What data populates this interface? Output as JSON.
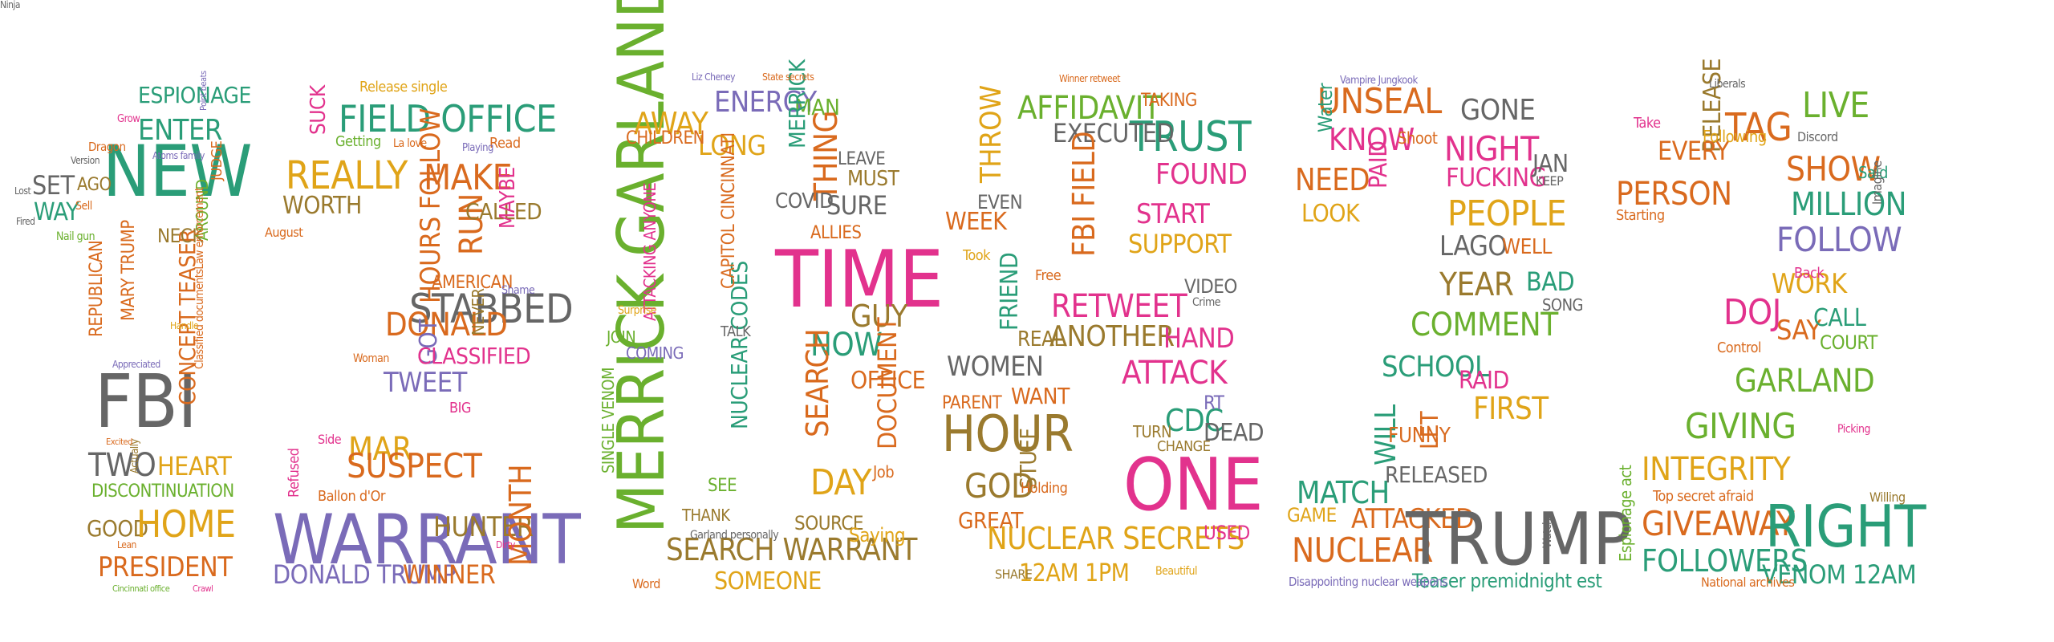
{
  "colors": {
    "teal": "#2a9d78",
    "orange": "#d96a1e",
    "yellow": "#e0a418",
    "pink": "#e2328d",
    "purple": "#7a6bb8",
    "green": "#6ab02e",
    "gray": "#666666",
    "brown": "#9a7a2e"
  },
  "digit_groups": [
    {
      "name": "digit-1-words",
      "words": [
        {
          "t": "NEW",
          "c": "teal"
        },
        {
          "t": "FBI",
          "c": "gray"
        },
        {
          "t": "ESPIONAGE",
          "c": "teal"
        },
        {
          "t": "ENTER",
          "c": "teal"
        },
        {
          "t": "SET",
          "c": "gray"
        },
        {
          "t": "WAY",
          "c": "teal"
        },
        {
          "t": "AGO",
          "c": "brown"
        },
        {
          "t": "REPUBLICAN",
          "c": "orange"
        },
        {
          "t": "MARY TRUMP",
          "c": "orange"
        },
        {
          "t": "CONCEPT TEASER",
          "c": "orange"
        },
        {
          "t": "TWO",
          "c": "gray"
        },
        {
          "t": "HEART",
          "c": "yellow"
        },
        {
          "t": "DISCONTINUATION",
          "c": "green"
        },
        {
          "t": "GOOD",
          "c": "brown"
        },
        {
          "t": "HOME",
          "c": "yellow"
        },
        {
          "t": "PRESIDENT",
          "c": "orange"
        },
        {
          "t": "JUDGE",
          "c": "orange"
        },
        {
          "t": "NECK",
          "c": "brown"
        },
        {
          "t": "AROUND",
          "c": "green"
        },
        {
          "t": "Dragon",
          "c": "orange"
        },
        {
          "t": "Grow",
          "c": "pink"
        },
        {
          "t": "Version",
          "c": "gray"
        },
        {
          "t": "Nail gun",
          "c": "green"
        },
        {
          "t": "Lost",
          "c": "gray"
        },
        {
          "t": "Sell",
          "c": "orange"
        },
        {
          "t": "Fired",
          "c": "gray"
        },
        {
          "t": "Atoms family",
          "c": "purple"
        },
        {
          "t": "Classified documentsLaw enforcement",
          "c": "orange"
        },
        {
          "t": "Handle",
          "c": "yellow"
        },
        {
          "t": "Appreciated",
          "c": "purple"
        },
        {
          "t": "Actually",
          "c": "brown"
        },
        {
          "t": "Excited",
          "c": "orange"
        },
        {
          "t": "Lean",
          "c": "orange"
        },
        {
          "t": "Cincinnati office",
          "c": "green"
        },
        {
          "t": "Crawl",
          "c": "pink"
        },
        {
          "t": "Point beats",
          "c": "purple"
        }
      ]
    },
    {
      "name": "digit-2-words",
      "words": [
        {
          "t": "FIELD OFFICE",
          "c": "teal"
        },
        {
          "t": "REALLY",
          "c": "yellow"
        },
        {
          "t": "SUCK",
          "c": "pink"
        },
        {
          "t": "MAKE",
          "c": "orange"
        },
        {
          "t": "WORTH",
          "c": "brown"
        },
        {
          "t": "HOURS FOLLOW",
          "c": "orange"
        },
        {
          "t": "RUN",
          "c": "orange"
        },
        {
          "t": "STABBED",
          "c": "gray"
        },
        {
          "t": "DONALD",
          "c": "orange"
        },
        {
          "t": "TWEET",
          "c": "purple"
        },
        {
          "t": "GOT",
          "c": "purple"
        },
        {
          "t": "MAR",
          "c": "yellow"
        },
        {
          "t": "SUSPECT",
          "c": "orange"
        },
        {
          "t": "WARRANT",
          "c": "purple"
        },
        {
          "t": "DONALD TRUMP",
          "c": "purple"
        },
        {
          "t": "WINNER",
          "c": "orange"
        },
        {
          "t": "HUNTER",
          "c": "brown"
        },
        {
          "t": "MONTH",
          "c": "orange"
        },
        {
          "t": "CLASSIFIED",
          "c": "pink"
        },
        {
          "t": "AMERICAN",
          "c": "orange"
        },
        {
          "t": "NEVER",
          "c": "brown"
        },
        {
          "t": "CALLED",
          "c": "brown"
        },
        {
          "t": "MAYBE",
          "c": "pink"
        },
        {
          "t": "Refused",
          "c": "pink"
        },
        {
          "t": "Side",
          "c": "pink"
        },
        {
          "t": "BIG",
          "c": "pink"
        },
        {
          "t": "Release single",
          "c": "yellow"
        },
        {
          "t": "Getting",
          "c": "green"
        },
        {
          "t": "Read",
          "c": "orange"
        },
        {
          "t": "La love",
          "c": "orange"
        },
        {
          "t": "Playing",
          "c": "purple"
        },
        {
          "t": "August",
          "c": "orange"
        },
        {
          "t": "Ballon d'Or",
          "c": "orange"
        },
        {
          "t": "Shame",
          "c": "purple"
        },
        {
          "t": "Woman",
          "c": "orange"
        },
        {
          "t": "Dirty",
          "c": "pink"
        }
      ]
    },
    {
      "name": "digit-0-words",
      "words": [
        {
          "t": "MERRICK GARLAND",
          "c": "green"
        },
        {
          "t": "TIME",
          "c": "pink"
        },
        {
          "t": "ENERGY",
          "c": "purple"
        },
        {
          "t": "AWAY",
          "c": "yellow"
        },
        {
          "t": "LONG",
          "c": "yellow"
        },
        {
          "t": "MAN",
          "c": "green"
        },
        {
          "t": "THING",
          "c": "orange"
        },
        {
          "t": "MERRICK",
          "c": "teal"
        },
        {
          "t": "COVID",
          "c": "gray"
        },
        {
          "t": "SURE",
          "c": "gray"
        },
        {
          "t": "GUY",
          "c": "brown"
        },
        {
          "t": "NOW",
          "c": "teal"
        },
        {
          "t": "OFFICE",
          "c": "orange"
        },
        {
          "t": "SEARCH",
          "c": "orange"
        },
        {
          "t": "DOCUMENT",
          "c": "orange"
        },
        {
          "t": "DAY",
          "c": "yellow"
        },
        {
          "t": "SEARCH WARRANT",
          "c": "brown"
        },
        {
          "t": "SOMEONE",
          "c": "yellow"
        },
        {
          "t": "SOURCE",
          "c": "brown"
        },
        {
          "t": "NUCLEAR CODES",
          "c": "teal"
        },
        {
          "t": "ATTACKING ANYONE",
          "c": "pink"
        },
        {
          "t": "SINGLE VENOM",
          "c": "green"
        },
        {
          "t": "CAPITOL CINCINNATI",
          "c": "orange"
        },
        {
          "t": "JOIN",
          "c": "green"
        },
        {
          "t": "COMING",
          "c": "purple"
        },
        {
          "t": "SEE",
          "c": "green"
        },
        {
          "t": "MUST",
          "c": "brown"
        },
        {
          "t": "LEAVE",
          "c": "gray"
        },
        {
          "t": "ALLIES",
          "c": "orange"
        },
        {
          "t": "CHILDREN",
          "c": "orange"
        },
        {
          "t": "TALK",
          "c": "gray"
        },
        {
          "t": "THANK",
          "c": "brown"
        },
        {
          "t": "Saying",
          "c": "yellow"
        },
        {
          "t": "Liz Cheney",
          "c": "purple"
        },
        {
          "t": "State secrets",
          "c": "orange"
        },
        {
          "t": "Garland personally",
          "c": "gray"
        },
        {
          "t": "Job",
          "c": "orange"
        },
        {
          "t": "Word",
          "c": "orange"
        },
        {
          "t": "Surprise",
          "c": "yellow"
        },
        {
          "t": "Ninja",
          "c": "gray"
        }
      ]
    },
    {
      "name": "digit-8-words",
      "words": [
        {
          "t": "AFFIDAVIT",
          "c": "green"
        },
        {
          "t": "THROW",
          "c": "yellow"
        },
        {
          "t": "TRUST",
          "c": "teal"
        },
        {
          "t": "EXECUTED",
          "c": "gray"
        },
        {
          "t": "FBI FIELD",
          "c": "orange"
        },
        {
          "t": "FOUND",
          "c": "pink"
        },
        {
          "t": "START",
          "c": "pink"
        },
        {
          "t": "WEEK",
          "c": "orange"
        },
        {
          "t": "EVEN",
          "c": "gray"
        },
        {
          "t": "SUPPORT",
          "c": "yellow"
        },
        {
          "t": "RETWEET",
          "c": "pink"
        },
        {
          "t": "ANOTHER",
          "c": "brown"
        },
        {
          "t": "FRIEND",
          "c": "teal"
        },
        {
          "t": "REAL",
          "c": "brown"
        },
        {
          "t": "HAND",
          "c": "pink"
        },
        {
          "t": "ATTACK",
          "c": "pink"
        },
        {
          "t": "WOMEN",
          "c": "gray"
        },
        {
          "t": "WANT",
          "c": "orange"
        },
        {
          "t": "PARENT",
          "c": "orange"
        },
        {
          "t": "HOUR",
          "c": "brown"
        },
        {
          "t": "CDC",
          "c": "teal"
        },
        {
          "t": "DEAD",
          "c": "gray"
        },
        {
          "t": "RT",
          "c": "purple"
        },
        {
          "t": "ONE",
          "c": "pink"
        },
        {
          "t": "GOD",
          "c": "brown"
        },
        {
          "t": "STUFF",
          "c": "brown"
        },
        {
          "t": "GREAT",
          "c": "orange"
        },
        {
          "t": "NUCLEAR SECRETS",
          "c": "yellow"
        },
        {
          "t": "12AM 1PM",
          "c": "yellow"
        },
        {
          "t": "SHARE",
          "c": "brown"
        },
        {
          "t": "TAKING",
          "c": "orange"
        },
        {
          "t": "VIDEO",
          "c": "gray"
        },
        {
          "t": "TURN",
          "c": "brown"
        },
        {
          "t": "CHANGE",
          "c": "brown"
        },
        {
          "t": "USED",
          "c": "pink"
        },
        {
          "t": "Winner retweet",
          "c": "orange"
        },
        {
          "t": "Took",
          "c": "yellow"
        },
        {
          "t": "Free",
          "c": "orange"
        },
        {
          "t": "Holding",
          "c": "orange"
        },
        {
          "t": "Beautiful",
          "c": "yellow"
        },
        {
          "t": "Crime",
          "c": "gray"
        }
      ]
    },
    {
      "name": "digit-2b-words",
      "words": [
        {
          "t": "UNSEAL",
          "c": "orange"
        },
        {
          "t": "GONE",
          "c": "gray"
        },
        {
          "t": "KNOW",
          "c": "pink"
        },
        {
          "t": "NEED",
          "c": "orange"
        },
        {
          "t": "PAID",
          "c": "pink"
        },
        {
          "t": "NIGHT",
          "c": "pink"
        },
        {
          "t": "FUCKING",
          "c": "pink"
        },
        {
          "t": "JAN",
          "c": "gray"
        },
        {
          "t": "LOOK",
          "c": "yellow"
        },
        {
          "t": "PEOPLE",
          "c": "yellow"
        },
        {
          "t": "LAGO",
          "c": "gray"
        },
        {
          "t": "WELL",
          "c": "orange"
        },
        {
          "t": "YEAR",
          "c": "brown"
        },
        {
          "t": "BAD",
          "c": "teal"
        },
        {
          "t": "COMMENT",
          "c": "green"
        },
        {
          "t": "SCHOOL",
          "c": "teal"
        },
        {
          "t": "RAID",
          "c": "pink"
        },
        {
          "t": "FIRST",
          "c": "yellow"
        },
        {
          "t": "WILL",
          "c": "teal"
        },
        {
          "t": "LET",
          "c": "orange"
        },
        {
          "t": "MATCH",
          "c": "teal"
        },
        {
          "t": "ATTACKED",
          "c": "orange"
        },
        {
          "t": "NUCLEAR",
          "c": "orange"
        },
        {
          "t": "TRUMP",
          "c": "gray"
        },
        {
          "t": "FUNNY",
          "c": "orange"
        },
        {
          "t": "RELEASED",
          "c": "gray"
        },
        {
          "t": "GAME",
          "c": "yellow"
        },
        {
          "t": "SONG",
          "c": "gray"
        },
        {
          "t": "KEEP",
          "c": "gray"
        },
        {
          "t": "Teaser premidnight est",
          "c": "teal"
        },
        {
          "t": "Disappointing nuclear weapons",
          "c": "purple"
        },
        {
          "t": "Water",
          "c": "teal"
        },
        {
          "t": "Shoot",
          "c": "orange"
        },
        {
          "t": "Vampire Jungkook",
          "c": "purple"
        },
        {
          "t": "Watch",
          "c": "gray"
        }
      ]
    },
    {
      "name": "digit-2c-words",
      "words": [
        {
          "t": "TAG",
          "c": "orange"
        },
        {
          "t": "LIVE",
          "c": "green"
        },
        {
          "t": "RELEASE",
          "c": "brown"
        },
        {
          "t": "EVERY",
          "c": "orange"
        },
        {
          "t": "PERSON",
          "c": "orange"
        },
        {
          "t": "SHOW",
          "c": "orange"
        },
        {
          "t": "MILLION",
          "c": "teal"
        },
        {
          "t": "FOLLOW",
          "c": "purple"
        },
        {
          "t": "WORK",
          "c": "yellow"
        },
        {
          "t": "DOJ",
          "c": "pink"
        },
        {
          "t": "SAY",
          "c": "orange"
        },
        {
          "t": "CALL",
          "c": "teal"
        },
        {
          "t": "COURT",
          "c": "green"
        },
        {
          "t": "GARLAND",
          "c": "green"
        },
        {
          "t": "GIVING",
          "c": "green"
        },
        {
          "t": "INTEGRITY",
          "c": "yellow"
        },
        {
          "t": "GIVEAWAY",
          "c": "orange"
        },
        {
          "t": "RIGHT",
          "c": "teal"
        },
        {
          "t": "FOLLOWERS",
          "c": "teal"
        },
        {
          "t": "VENOM 12AM",
          "c": "teal"
        },
        {
          "t": "Top secret afraid",
          "c": "orange"
        },
        {
          "t": "National archives",
          "c": "orange"
        },
        {
          "t": "Espionage act",
          "c": "green"
        },
        {
          "t": "Starting",
          "c": "orange"
        },
        {
          "t": "Back",
          "c": "pink"
        },
        {
          "t": "Following",
          "c": "yellow"
        },
        {
          "t": "Control",
          "c": "orange"
        },
        {
          "t": "Take",
          "c": "pink"
        },
        {
          "t": "Liberals",
          "c": "gray"
        },
        {
          "t": "Said",
          "c": "teal"
        },
        {
          "t": "Imagine",
          "c": "gray"
        },
        {
          "t": "Discord",
          "c": "gray"
        },
        {
          "t": "Picking",
          "c": "pink"
        },
        {
          "t": "Willing",
          "c": "brown"
        }
      ]
    }
  ]
}
